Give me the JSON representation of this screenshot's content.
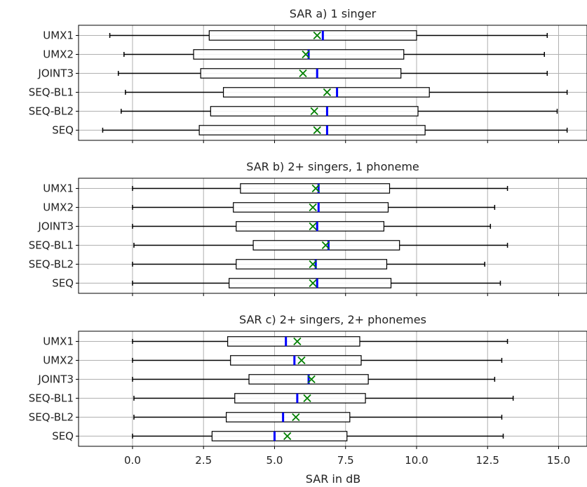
{
  "chart_data": {
    "type": "boxplot",
    "xlabel": "SAR in dB",
    "xlim": [
      -1.9,
      16.0
    ],
    "xticks": [
      0.0,
      2.5,
      5.0,
      7.5,
      10.0,
      12.5,
      15.0
    ],
    "xtick_labels": [
      "0.0",
      "2.5",
      "5.0",
      "7.5",
      "10.0",
      "12.5",
      "15.0"
    ],
    "grid": true,
    "colors": {
      "box_edge": "#000000",
      "median": "#0000ff",
      "mean_marker": "#008000",
      "grid": "#b0b0b0"
    },
    "categories": [
      "UMX1",
      "UMX2",
      "JOINT3",
      "SEQ-BL1",
      "SEQ-BL2",
      "SEQ"
    ],
    "panels": [
      {
        "title": "SAR a) 1 singer",
        "boxes": [
          {
            "label": "UMX1",
            "whisker_low": -0.8,
            "q1": 2.7,
            "median": 6.7,
            "q3": 10.0,
            "whisker_high": 14.6,
            "mean": 6.5
          },
          {
            "label": "UMX2",
            "whisker_low": -0.3,
            "q1": 2.15,
            "median": 6.2,
            "q3": 9.55,
            "whisker_high": 14.5,
            "mean": 6.1
          },
          {
            "label": "JOINT3",
            "whisker_low": -0.5,
            "q1": 2.4,
            "median": 6.5,
            "q3": 9.45,
            "whisker_high": 14.6,
            "mean": 6.0
          },
          {
            "label": "SEQ-BL1",
            "whisker_low": -0.25,
            "q1": 3.2,
            "median": 7.2,
            "q3": 10.45,
            "whisker_high": 15.3,
            "mean": 6.85
          },
          {
            "label": "SEQ-BL2",
            "whisker_low": -0.4,
            "q1": 2.75,
            "median": 6.85,
            "q3": 10.05,
            "whisker_high": 14.95,
            "mean": 6.4
          },
          {
            "label": "SEQ",
            "whisker_low": -1.05,
            "q1": 2.35,
            "median": 6.85,
            "q3": 10.3,
            "whisker_high": 15.3,
            "mean": 6.5
          }
        ]
      },
      {
        "title": "SAR b) 2+ singers, 1 phoneme",
        "boxes": [
          {
            "label": "UMX1",
            "whisker_low": 0.0,
            "q1": 3.8,
            "median": 6.55,
            "q3": 9.05,
            "whisker_high": 13.2,
            "mean": 6.45
          },
          {
            "label": "UMX2",
            "whisker_low": 0.0,
            "q1": 3.55,
            "median": 6.55,
            "q3": 9.0,
            "whisker_high": 12.75,
            "mean": 6.35
          },
          {
            "label": "JOINT3",
            "whisker_low": 0.0,
            "q1": 3.65,
            "median": 6.5,
            "q3": 8.85,
            "whisker_high": 12.6,
            "mean": 6.35
          },
          {
            "label": "SEQ-BL1",
            "whisker_low": 0.05,
            "q1": 4.25,
            "median": 6.9,
            "q3": 9.4,
            "whisker_high": 13.2,
            "mean": 6.8
          },
          {
            "label": "SEQ-BL2",
            "whisker_low": 0.0,
            "q1": 3.65,
            "median": 6.45,
            "q3": 8.95,
            "whisker_high": 12.4,
            "mean": 6.35
          },
          {
            "label": "SEQ",
            "whisker_low": 0.0,
            "q1": 3.4,
            "median": 6.5,
            "q3": 9.1,
            "whisker_high": 12.95,
            "mean": 6.35
          }
        ]
      },
      {
        "title": "SAR c) 2+ singers, 2+ phonemes",
        "boxes": [
          {
            "label": "UMX1",
            "whisker_low": 0.0,
            "q1": 3.35,
            "median": 5.4,
            "q3": 8.0,
            "whisker_high": 13.2,
            "mean": 5.8
          },
          {
            "label": "UMX2",
            "whisker_low": 0.0,
            "q1": 3.45,
            "median": 5.7,
            "q3": 8.05,
            "whisker_high": 13.0,
            "mean": 5.95
          },
          {
            "label": "JOINT3",
            "whisker_low": 0.0,
            "q1": 4.1,
            "median": 6.2,
            "q3": 8.3,
            "whisker_high": 12.75,
            "mean": 6.3
          },
          {
            "label": "SEQ-BL1",
            "whisker_low": 0.05,
            "q1": 3.6,
            "median": 5.8,
            "q3": 8.2,
            "whisker_high": 13.4,
            "mean": 6.15
          },
          {
            "label": "SEQ-BL2",
            "whisker_low": 0.05,
            "q1": 3.3,
            "median": 5.3,
            "q3": 7.65,
            "whisker_high": 13.0,
            "mean": 5.75
          },
          {
            "label": "SEQ",
            "whisker_low": 0.0,
            "q1": 2.8,
            "median": 5.0,
            "q3": 7.55,
            "whisker_high": 13.05,
            "mean": 5.45
          }
        ]
      }
    ]
  }
}
